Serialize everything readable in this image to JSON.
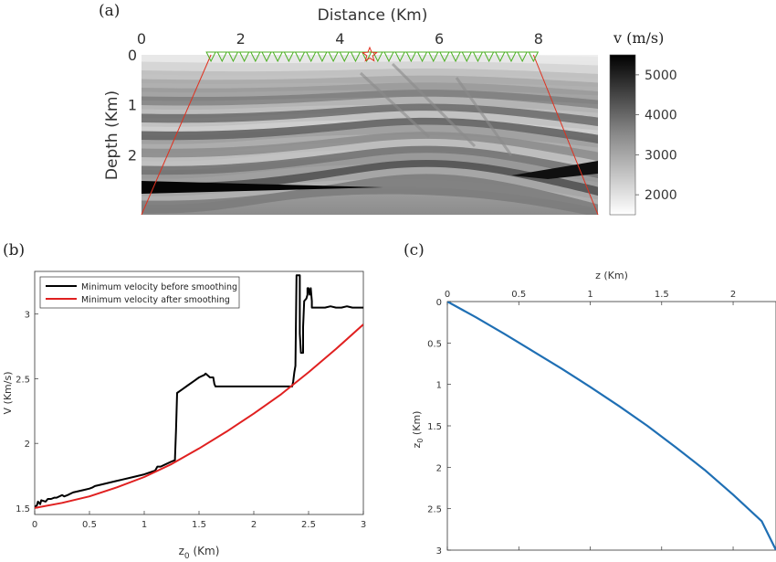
{
  "chart_data": [
    {
      "panel_label": "(a)",
      "type": "heatmap",
      "xlabel": "Distance (Km)",
      "ylabel": "Depth (Km)",
      "xlim": [
        0,
        9.2
      ],
      "ylim": [
        0,
        3.2
      ],
      "xticks": [
        "0",
        "2",
        "4",
        "6",
        "8"
      ],
      "yticks": [
        "0",
        "1",
        "2"
      ],
      "colorbar_label": "v (m/s)",
      "colorbar_range": [
        1500,
        5500
      ],
      "colorbar_ticks": [
        "2000",
        "3000",
        "4000",
        "5000"
      ],
      "colormap": "gray-reversed",
      "source": {
        "x": 4.6,
        "depth": 0
      },
      "receivers": {
        "x_start": 1.4,
        "x_end": 7.9,
        "count": 30,
        "color": "#4caf24"
      },
      "aperture_lines": [
        {
          "x": [
            1.4,
            0.0
          ],
          "depth": [
            0,
            3.2
          ]
        },
        {
          "x": [
            7.9,
            9.2
          ],
          "depth": [
            0,
            3.2
          ]
        }
      ],
      "aperture_color": "#e0301e",
      "source_color": "#e0301e"
    },
    {
      "panel_label": "(b)",
      "type": "line",
      "xlabel": "z",
      "xlabel_sub": "0",
      "xlabel_unit": " (Km)",
      "ylabel": "V (Km/s)",
      "xlim": [
        0,
        3
      ],
      "ylim": [
        1.45,
        3.33
      ],
      "xticks": [
        "0",
        "0.5",
        "1",
        "1.5",
        "2",
        "2.5",
        "3"
      ],
      "yticks": [
        "1.5",
        "2",
        "2.5",
        "3"
      ],
      "legend_position": "top-left",
      "series": [
        {
          "name": "Minimum velocity before smoothing",
          "color": "#000000",
          "x": [
            0,
            0.02,
            0.03,
            0.05,
            0.06,
            0.1,
            0.12,
            0.15,
            0.18,
            0.2,
            0.25,
            0.27,
            0.3,
            0.35,
            0.4,
            0.45,
            0.5,
            0.53,
            0.55,
            0.6,
            0.7,
            0.8,
            0.9,
            1.0,
            1.1,
            1.12,
            1.15,
            1.2,
            1.25,
            1.28,
            1.29,
            1.3,
            1.35,
            1.4,
            1.45,
            1.5,
            1.55,
            1.56,
            1.6,
            1.63,
            1.64,
            1.65,
            1.7,
            1.8,
            1.9,
            2.0,
            2.1,
            2.2,
            2.3,
            2.35,
            2.36,
            2.37,
            2.38,
            2.39,
            2.4,
            2.42,
            2.42,
            2.43,
            2.44,
            2.45,
            2.45,
            2.46,
            2.48,
            2.49,
            2.49,
            2.5,
            2.51,
            2.52,
            2.53,
            2.53,
            2.55,
            2.6,
            2.65,
            2.7,
            2.75,
            2.8,
            2.85,
            2.9,
            2.95,
            3.0
          ],
          "values": [
            1.51,
            1.52,
            1.55,
            1.53,
            1.56,
            1.55,
            1.57,
            1.57,
            1.58,
            1.58,
            1.6,
            1.59,
            1.6,
            1.62,
            1.63,
            1.64,
            1.65,
            1.66,
            1.67,
            1.68,
            1.7,
            1.72,
            1.74,
            1.76,
            1.79,
            1.82,
            1.82,
            1.84,
            1.86,
            1.87,
            2.1,
            2.39,
            2.42,
            2.45,
            2.48,
            2.51,
            2.53,
            2.54,
            2.51,
            2.51,
            2.46,
            2.44,
            2.44,
            2.44,
            2.44,
            2.44,
            2.44,
            2.44,
            2.44,
            2.44,
            2.48,
            2.55,
            2.6,
            3.3,
            3.3,
            3.3,
            2.85,
            2.7,
            2.7,
            2.7,
            2.9,
            3.1,
            3.12,
            3.15,
            3.2,
            3.2,
            3.15,
            3.2,
            3.1,
            3.05,
            3.05,
            3.05,
            3.05,
            3.06,
            3.05,
            3.05,
            3.06,
            3.05,
            3.05,
            3.05
          ]
        },
        {
          "name": "Minimum velocity after smoothing",
          "color": "#e02020",
          "x": [
            0,
            0.25,
            0.5,
            0.75,
            1.0,
            1.25,
            1.5,
            1.75,
            2.0,
            2.25,
            2.5,
            2.75,
            3.0
          ],
          "values": [
            1.5,
            1.54,
            1.59,
            1.66,
            1.74,
            1.84,
            1.96,
            2.09,
            2.23,
            2.38,
            2.55,
            2.73,
            2.92
          ]
        }
      ]
    },
    {
      "panel_label": "(c)",
      "type": "line",
      "xlabel": "z (Km)",
      "xlabel_position": "top",
      "ylabel": "z",
      "ylabel_sub": "0",
      "ylabel_unit": " (Km)",
      "y_reversed": true,
      "xlim": [
        0,
        2.3
      ],
      "ylim": [
        0,
        3
      ],
      "xticks": [
        "0",
        "0.5",
        "1",
        "1.5",
        "2"
      ],
      "yticks": [
        "0",
        "0.5",
        "1",
        "1.5",
        "2",
        "2.5",
        "3"
      ],
      "series": [
        {
          "color": "#1f6fb4",
          "x": [
            0,
            0.2,
            0.4,
            0.6,
            0.8,
            1.0,
            1.2,
            1.4,
            1.6,
            1.8,
            2.0,
            2.2,
            2.3
          ],
          "values": [
            0,
            0.19,
            0.39,
            0.6,
            0.81,
            1.03,
            1.26,
            1.5,
            1.76,
            2.03,
            2.33,
            2.65,
            3.0
          ]
        }
      ]
    }
  ]
}
